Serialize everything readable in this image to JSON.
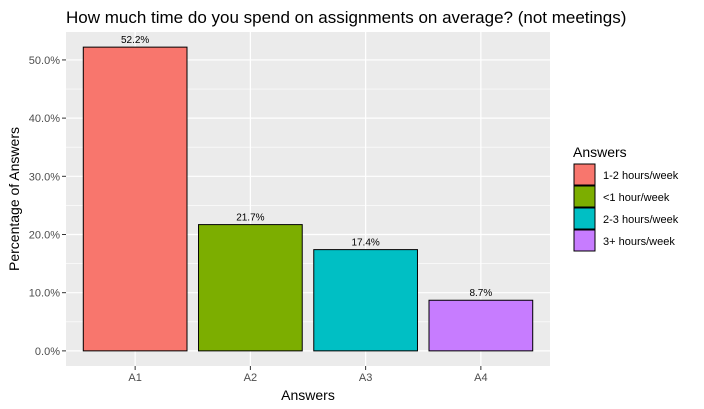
{
  "chart_data": {
    "type": "bar",
    "title": "How much time do you spend on assignments on average? (not meetings)",
    "xlabel": "Answers",
    "ylabel": "Percentage of Answers",
    "categories": [
      "A1",
      "A2",
      "A3",
      "A4"
    ],
    "values": [
      52.2,
      21.7,
      17.4,
      8.7
    ],
    "data_labels": [
      "52.2%",
      "21.7%",
      "17.4%",
      "8.7%"
    ],
    "y_ticks": [
      0,
      10,
      20,
      30,
      40,
      50
    ],
    "y_tick_labels": [
      "0.0%",
      "10.0%",
      "20.0%",
      "30.0%",
      "40.0%",
      "50.0%"
    ],
    "ylim": [
      -2.6,
      54.8
    ],
    "grid": true,
    "legend": {
      "title": "Answers",
      "position": "right",
      "entries": [
        "1-2 hours/week",
        "<1 hour/week",
        "2-3 hours/week",
        "3+ hours/week"
      ]
    },
    "colors": [
      "#F8766D",
      "#7CAE00",
      "#00BFC4",
      "#C77CFF"
    ],
    "panel_background": "#EBEBEB"
  }
}
